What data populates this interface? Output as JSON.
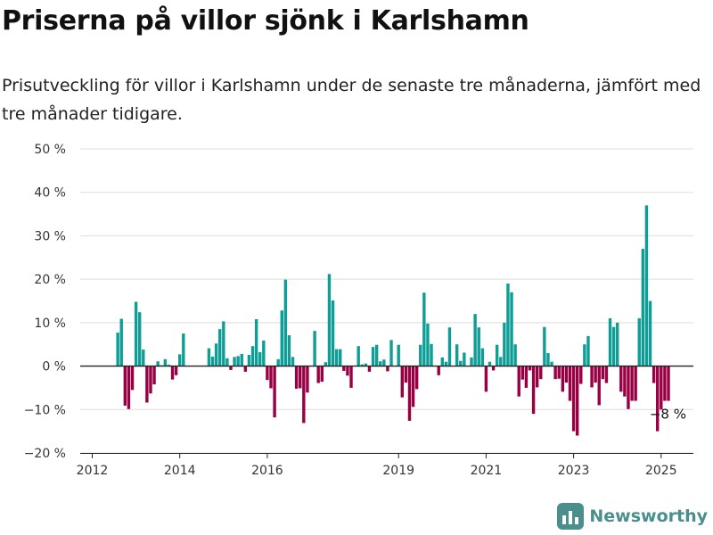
{
  "header": {
    "title": "Priserna på villor sjönk i Karlshamn",
    "subtitle": "Prisutveckling för villor i Karlshamn under de senaste tre månaderna, jämfört med tre månader tidigare."
  },
  "logo": {
    "text": "Newsworthy",
    "icon": "newsworthy-logo-icon"
  },
  "colors": {
    "positive": "#0e9e96",
    "negative": "#990044",
    "grid": "#dddddd",
    "axis": "#222222"
  },
  "chart_data": {
    "type": "bar",
    "y_tick_labels": [
      "50 %",
      "40 %",
      "30 %",
      "20 %",
      "10 %",
      "0 %",
      "−10 %",
      "−20 %"
    ],
    "x_tick_labels": [
      "2012",
      "2014",
      "2016",
      "2019",
      "2021",
      "2023",
      "2025"
    ],
    "ylim": [
      -20,
      50
    ],
    "annotation": "−8 %",
    "series": [
      {
        "points": [
          {
            "x": "2012-08",
            "y": 7.7
          },
          {
            "x": "2012-09",
            "y": 10.9
          },
          {
            "x": "2012-10",
            "y": -9.1
          },
          {
            "x": "2012-11",
            "y": -9.9
          },
          {
            "x": "2012-12",
            "y": -5.5
          },
          {
            "x": "2013-01",
            "y": 14.8
          },
          {
            "x": "2013-02",
            "y": 12.4
          },
          {
            "x": "2013-03",
            "y": 3.8
          },
          {
            "x": "2013-04",
            "y": -8.4
          },
          {
            "x": "2013-05",
            "y": -6.3
          },
          {
            "x": "2013-06",
            "y": -4.2
          },
          {
            "x": "2013-07",
            "y": 1.1
          },
          {
            "x": "2013-08",
            "y": 0.2
          },
          {
            "x": "2013-09",
            "y": 1.6
          },
          {
            "x": "2013-10",
            "y": 0.3
          },
          {
            "x": "2013-11",
            "y": -3.1
          },
          {
            "x": "2013-12",
            "y": -2.1
          },
          {
            "x": "2014-01",
            "y": 2.7
          },
          {
            "x": "2014-02",
            "y": 7.5
          },
          {
            "x": "2014-03",
            "y": 0.0
          },
          {
            "x": "2014-04",
            "y": 0.0
          },
          {
            "x": "2014-05",
            "y": 0.0
          },
          {
            "x": "2014-06",
            "y": 0.0
          },
          {
            "x": "2014-07",
            "y": 0.0
          },
          {
            "x": "2014-08",
            "y": 0.0
          },
          {
            "x": "2014-09",
            "y": 4.1
          },
          {
            "x": "2014-10",
            "y": 2.2
          },
          {
            "x": "2014-11",
            "y": 5.2
          },
          {
            "x": "2014-12",
            "y": 8.5
          },
          {
            "x": "2015-01",
            "y": 10.3
          },
          {
            "x": "2015-02",
            "y": 1.8
          },
          {
            "x": "2015-03",
            "y": -0.9
          },
          {
            "x": "2015-04",
            "y": 2.1
          },
          {
            "x": "2015-05",
            "y": 2.3
          },
          {
            "x": "2015-06",
            "y": 2.8
          },
          {
            "x": "2015-07",
            "y": -1.3
          },
          {
            "x": "2015-08",
            "y": 2.6
          },
          {
            "x": "2015-09",
            "y": 4.6
          },
          {
            "x": "2015-10",
            "y": 10.8
          },
          {
            "x": "2015-11",
            "y": 3.2
          },
          {
            "x": "2015-12",
            "y": 5.9
          },
          {
            "x": "2016-01",
            "y": -3.2
          },
          {
            "x": "2016-02",
            "y": -5.1
          },
          {
            "x": "2016-03",
            "y": -11.8
          },
          {
            "x": "2016-04",
            "y": 1.6
          },
          {
            "x": "2016-05",
            "y": 12.8
          },
          {
            "x": "2016-06",
            "y": 19.9
          },
          {
            "x": "2016-07",
            "y": 7.1
          },
          {
            "x": "2016-08",
            "y": 2.1
          },
          {
            "x": "2016-09",
            "y": -5.2
          },
          {
            "x": "2016-10",
            "y": -5.1
          },
          {
            "x": "2016-11",
            "y": -13.1
          },
          {
            "x": "2016-12",
            "y": -6.1
          },
          {
            "x": "2017-01",
            "y": 0.0
          },
          {
            "x": "2017-02",
            "y": 8.1
          },
          {
            "x": "2017-03",
            "y": -3.9
          },
          {
            "x": "2017-04",
            "y": -3.6
          },
          {
            "x": "2017-05",
            "y": 0.9
          },
          {
            "x": "2017-06",
            "y": 21.2
          },
          {
            "x": "2017-07",
            "y": 15.1
          },
          {
            "x": "2017-08",
            "y": 3.9
          },
          {
            "x": "2017-09",
            "y": 3.9
          },
          {
            "x": "2017-10",
            "y": -1.1
          },
          {
            "x": "2017-11",
            "y": -2.2
          },
          {
            "x": "2017-12",
            "y": -5.0
          },
          {
            "x": "2018-01",
            "y": 0.0
          },
          {
            "x": "2018-02",
            "y": 4.6
          },
          {
            "x": "2018-03",
            "y": 0.4
          },
          {
            "x": "2018-04",
            "y": 0.6
          },
          {
            "x": "2018-05",
            "y": -1.3
          },
          {
            "x": "2018-06",
            "y": 4.4
          },
          {
            "x": "2018-07",
            "y": 4.9
          },
          {
            "x": "2018-08",
            "y": 1.1
          },
          {
            "x": "2018-09",
            "y": 1.5
          },
          {
            "x": "2018-10",
            "y": -1.2
          },
          {
            "x": "2018-11",
            "y": 6.0
          },
          {
            "x": "2018-12",
            "y": 0.0
          },
          {
            "x": "2019-01",
            "y": 4.9
          },
          {
            "x": "2019-02",
            "y": -7.2
          },
          {
            "x": "2019-03",
            "y": -3.8
          },
          {
            "x": "2019-04",
            "y": -12.6
          },
          {
            "x": "2019-05",
            "y": -9.4
          },
          {
            "x": "2019-06",
            "y": -5.3
          },
          {
            "x": "2019-07",
            "y": 4.9
          },
          {
            "x": "2019-08",
            "y": 16.9
          },
          {
            "x": "2019-09",
            "y": 9.8
          },
          {
            "x": "2019-10",
            "y": 5.1
          },
          {
            "x": "2019-11",
            "y": 0.0
          },
          {
            "x": "2019-12",
            "y": -2.1
          },
          {
            "x": "2020-01",
            "y": 2.0
          },
          {
            "x": "2020-02",
            "y": 1.0
          },
          {
            "x": "2020-03",
            "y": 8.9
          },
          {
            "x": "2020-04",
            "y": 0.0
          },
          {
            "x": "2020-05",
            "y": 5.0
          },
          {
            "x": "2020-06",
            "y": 1.2
          },
          {
            "x": "2020-07",
            "y": 3.1
          },
          {
            "x": "2020-08",
            "y": 0.0
          },
          {
            "x": "2020-09",
            "y": 2.0
          },
          {
            "x": "2020-10",
            "y": 12.0
          },
          {
            "x": "2020-11",
            "y": 8.9
          },
          {
            "x": "2020-12",
            "y": 4.1
          },
          {
            "x": "2021-01",
            "y": -5.9
          },
          {
            "x": "2021-02",
            "y": 1.0
          },
          {
            "x": "2021-03",
            "y": -1.0
          },
          {
            "x": "2021-04",
            "y": 4.9
          },
          {
            "x": "2021-05",
            "y": 2.1
          },
          {
            "x": "2021-06",
            "y": 10.0
          },
          {
            "x": "2021-07",
            "y": 19.0
          },
          {
            "x": "2021-08",
            "y": 17.0
          },
          {
            "x": "2021-09",
            "y": 5.0
          },
          {
            "x": "2021-10",
            "y": -7.0
          },
          {
            "x": "2021-11",
            "y": -3.1
          },
          {
            "x": "2021-12",
            "y": -5.0
          },
          {
            "x": "2022-01",
            "y": -1.0
          },
          {
            "x": "2022-02",
            "y": -11.0
          },
          {
            "x": "2022-03",
            "y": -4.9
          },
          {
            "x": "2022-04",
            "y": -3.0
          },
          {
            "x": "2022-05",
            "y": 9.0
          },
          {
            "x": "2022-06",
            "y": 3.0
          },
          {
            "x": "2022-07",
            "y": 1.0
          },
          {
            "x": "2022-08",
            "y": -3.0
          },
          {
            "x": "2022-09",
            "y": -2.9
          },
          {
            "x": "2022-10",
            "y": -5.9
          },
          {
            "x": "2022-11",
            "y": -3.8
          },
          {
            "x": "2022-12",
            "y": -8.0
          },
          {
            "x": "2023-01",
            "y": -15.0
          },
          {
            "x": "2023-02",
            "y": -16.0
          },
          {
            "x": "2023-03",
            "y": -4.1
          },
          {
            "x": "2023-04",
            "y": 5.0
          },
          {
            "x": "2023-05",
            "y": 6.9
          },
          {
            "x": "2023-06",
            "y": -4.9
          },
          {
            "x": "2023-07",
            "y": -3.8
          },
          {
            "x": "2023-08",
            "y": -9.0
          },
          {
            "x": "2023-09",
            "y": -3.0
          },
          {
            "x": "2023-10",
            "y": -3.9
          },
          {
            "x": "2023-11",
            "y": 11.0
          },
          {
            "x": "2023-12",
            "y": 9.0
          },
          {
            "x": "2024-01",
            "y": 10.0
          },
          {
            "x": "2024-02",
            "y": -5.9
          },
          {
            "x": "2024-03",
            "y": -7.0
          },
          {
            "x": "2024-04",
            "y": -9.9
          },
          {
            "x": "2024-05",
            "y": -8.0
          },
          {
            "x": "2024-06",
            "y": -8.0
          },
          {
            "x": "2024-07",
            "y": 11.0
          },
          {
            "x": "2024-08",
            "y": 27.0
          },
          {
            "x": "2024-09",
            "y": 37.0
          },
          {
            "x": "2024-10",
            "y": 15.0
          },
          {
            "x": "2024-11",
            "y": -3.9
          },
          {
            "x": "2024-12",
            "y": -15.0
          },
          {
            "x": "2025-01",
            "y": -10.0
          },
          {
            "x": "2025-02",
            "y": -8.0
          },
          {
            "x": "2025-03",
            "y": -8.0
          }
        ]
      }
    ]
  }
}
